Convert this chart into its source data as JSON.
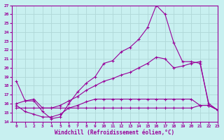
{
  "xlabel": "Windchill (Refroidissement éolien,°C)",
  "bg_color": "#c8f0f0",
  "grid_color": "#b0d8d8",
  "line_color": "#990099",
  "ylim": [
    14,
    27
  ],
  "xlim": [
    -0.5,
    23
  ],
  "yticks": [
    14,
    15,
    16,
    17,
    18,
    19,
    20,
    21,
    22,
    23,
    24,
    25,
    26,
    27
  ],
  "xticks": [
    0,
    1,
    2,
    3,
    4,
    5,
    6,
    7,
    8,
    9,
    10,
    11,
    12,
    13,
    14,
    15,
    16,
    17,
    18,
    19,
    20,
    21,
    22,
    23
  ],
  "line1_x": [
    0,
    1,
    2,
    3,
    4,
    5,
    6,
    7,
    8,
    9,
    10,
    11,
    12,
    13,
    14,
    15,
    16,
    17,
    18,
    19,
    20,
    21,
    22,
    23
  ],
  "line1_y": [
    18.5,
    16.3,
    16.3,
    15.1,
    14.3,
    14.5,
    16.0,
    17.3,
    18.3,
    19.0,
    20.5,
    20.8,
    21.8,
    22.3,
    23.2,
    24.5,
    27.0,
    26.0,
    22.8,
    20.7,
    20.7,
    20.5,
    16.0,
    15.3
  ],
  "line2_x": [
    0,
    1,
    2,
    3,
    4,
    5,
    6,
    7,
    8,
    9,
    10,
    11,
    12,
    13,
    14,
    15,
    16,
    17,
    18,
    19,
    20,
    21,
    22,
    23
  ],
  "line2_y": [
    15.5,
    15.5,
    15.5,
    15.5,
    15.5,
    15.5,
    15.5,
    15.5,
    15.5,
    15.5,
    15.5,
    15.5,
    15.5,
    15.5,
    15.5,
    15.5,
    15.5,
    15.5,
    15.5,
    15.5,
    15.5,
    15.8,
    15.8,
    15.3
  ],
  "line3_x": [
    0,
    1,
    2,
    3,
    4,
    5,
    6,
    7,
    8,
    9,
    10,
    11,
    12,
    13,
    14,
    15,
    16,
    17,
    18,
    19,
    20,
    21,
    22,
    23
  ],
  "line3_y": [
    15.8,
    15.1,
    14.8,
    14.5,
    14.5,
    14.8,
    15.5,
    15.8,
    16.2,
    16.5,
    16.5,
    16.5,
    16.5,
    16.5,
    16.5,
    16.5,
    16.5,
    16.5,
    16.5,
    16.5,
    16.5,
    15.8,
    15.8,
    15.3
  ],
  "line4_x": [
    0,
    1,
    2,
    3,
    4,
    5,
    6,
    7,
    8,
    9,
    10,
    11,
    12,
    13,
    14,
    15,
    16,
    17,
    18,
    19,
    20,
    21,
    22,
    23
  ],
  "line4_y": [
    16.0,
    16.3,
    16.5,
    15.5,
    15.5,
    15.8,
    16.3,
    16.8,
    17.5,
    18.0,
    18.5,
    18.8,
    19.2,
    19.5,
    20.0,
    20.5,
    21.2,
    21.0,
    20.0,
    20.2,
    20.5,
    20.7,
    15.8,
    15.3
  ]
}
